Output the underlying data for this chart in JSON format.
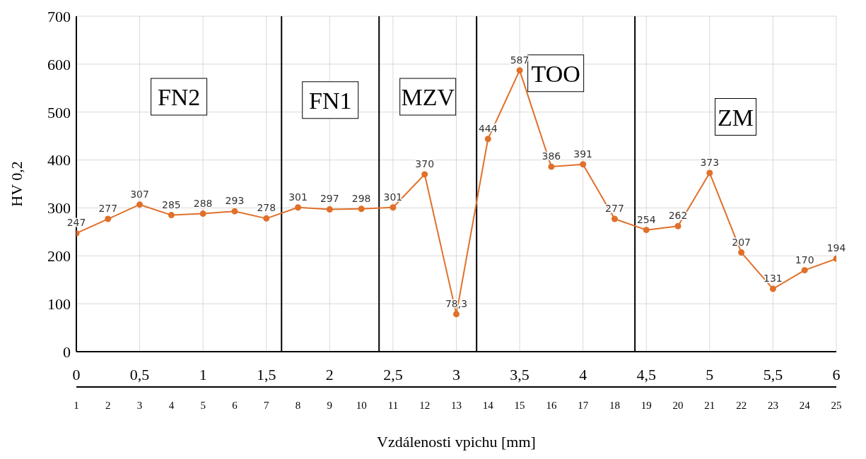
{
  "chart_data": {
    "type": "line",
    "xlabel": "Vzdálenosti vpichu [mm]",
    "ylabel": "HV 0,2",
    "x": [
      0,
      0.25,
      0.5,
      0.75,
      1,
      1.25,
      1.5,
      1.75,
      2,
      2.25,
      2.5,
      2.75,
      3,
      3.25,
      3.5,
      3.75,
      4,
      4.25,
      4.5,
      4.75,
      5,
      5.25,
      5.5,
      5.75,
      6
    ],
    "series": [
      {
        "color": "#e0702a",
        "values": [
          247,
          277,
          307,
          285,
          288,
          293,
          278,
          301,
          297,
          298,
          301,
          370,
          78.3,
          444,
          587,
          386,
          391,
          277,
          254,
          262,
          373,
          207,
          131,
          170,
          194
        ]
      }
    ],
    "xlim": [
      0,
      6
    ],
    "xticks": [
      0,
      {
        "value": 0.5,
        "label": "0,5"
      },
      1,
      {
        "value": 1.5,
        "label": "1,5"
      },
      2,
      {
        "value": 2.5,
        "label": "2,5"
      },
      3,
      {
        "value": 3.5,
        "label": "3,5"
      },
      4,
      {
        "value": 4.5,
        "label": "4,5"
      },
      5,
      {
        "value": 5.5,
        "label": "5,5"
      },
      6
    ],
    "x2lim": [
      1,
      25
    ],
    "x2ticks": [
      1,
      2,
      3,
      4,
      5,
      6,
      7,
      8,
      9,
      10,
      11,
      12,
      13,
      14,
      15,
      16,
      17,
      18,
      19,
      20,
      21,
      22,
      23,
      24,
      25
    ],
    "ylim": [
      0,
      700
    ],
    "yticks": [
      0,
      100,
      200,
      300,
      400,
      500,
      600,
      700
    ],
    "ref_lines": [
      {
        "axis": "x",
        "value": 1.62,
        "color": "#000000"
      },
      {
        "axis": "x",
        "value": 2.39,
        "color": "#000000"
      },
      {
        "axis": "x",
        "value": 3.16,
        "color": "#000000"
      },
      {
        "axis": "x",
        "value": 4.41,
        "color": "#000000"
      }
    ],
    "annotations": [
      "FN2",
      "FN1",
      "MZV",
      "TOO",
      "ZM"
    ],
    "value_labels": [
      "247",
      "277",
      "307",
      "285",
      "288",
      "293",
      "278",
      "301",
      "297",
      "298",
      "301",
      "370",
      "78,3",
      "444",
      "587",
      "386",
      "391",
      "277",
      "254",
      "262",
      "373",
      "207",
      "131",
      "170",
      "194"
    ],
    "grid": true,
    "marker": "circle",
    "line_style": "solid"
  }
}
